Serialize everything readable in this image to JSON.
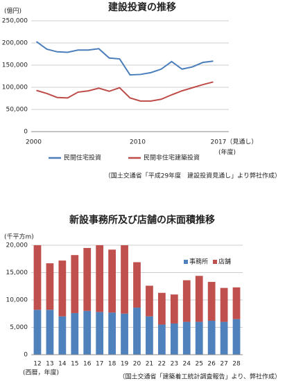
{
  "chart_data": [
    {
      "type": "line",
      "title": "建設投資の推移",
      "y_label": "(億円)",
      "x_label": "(年度)",
      "x": [
        2000,
        2001,
        2002,
        2003,
        2004,
        2005,
        2006,
        2007,
        2008,
        2009,
        2010,
        2011,
        2012,
        2013,
        2014,
        2015,
        2016,
        2017
      ],
      "series": [
        {
          "name": "民間住宅投資",
          "color": "#4a7ebb",
          "values": [
            203000,
            186000,
            180000,
            179000,
            184000,
            184000,
            187000,
            166000,
            164000,
            128000,
            129000,
            133000,
            141000,
            158000,
            141000,
            146000,
            156000,
            159000
          ]
        },
        {
          "name": "民間非住宅建築投資",
          "color": "#be4b48",
          "values": [
            93000,
            86000,
            77000,
            76000,
            89000,
            92000,
            98000,
            91000,
            99000,
            76000,
            69000,
            69000,
            73000,
            83000,
            92000,
            99000,
            106000,
            112000
          ]
        }
      ],
      "xlim": [
        1999.5,
        2018.5
      ],
      "xticks": [
        2000,
        2010,
        {
          "value": 2017,
          "label": "2017（見通し）"
        }
      ],
      "ylim": [
        0,
        250000
      ],
      "yticks": [
        0,
        {
          "value": 50000,
          "label": "50,000"
        },
        {
          "value": 100000,
          "label": "100,000"
        },
        {
          "value": 150000,
          "label": "150,000"
        },
        {
          "value": 200000,
          "label": "200,000"
        },
        {
          "value": 250000,
          "label": "250,000"
        }
      ],
      "grid": true,
      "legend": "bottom",
      "source": "（国土交通省「平成29年度　建設投資見通し」より弊社作成）"
    },
    {
      "type": "stacked-bar",
      "title": "新設事務所及び店舗の床面積推移",
      "y_label": "(千平方m)",
      "x_label": "(西暦，年度)",
      "categories": [
        "12",
        "13",
        "14",
        "15",
        "16",
        "17",
        "18",
        "19",
        "20",
        "21",
        "22",
        "23",
        "24",
        "25",
        "26",
        "27",
        "28"
      ],
      "series": [
        {
          "name": "事務所",
          "color": "#4f81bd",
          "values": [
            8200,
            8200,
            7000,
            7600,
            8000,
            7800,
            7700,
            7500,
            8600,
            7000,
            5500,
            5700,
            6000,
            6000,
            6200,
            6000,
            6500
          ]
        },
        {
          "name": "店舗",
          "color": "#c0504d",
          "values": [
            12000,
            8500,
            10200,
            10600,
            11500,
            12500,
            11500,
            12800,
            8300,
            5600,
            5800,
            5300,
            7600,
            8400,
            7100,
            6200,
            5800
          ]
        }
      ],
      "ylim": [
        0,
        20000
      ],
      "yticks": [
        0,
        {
          "value": 5000,
          "label": "5,000"
        },
        {
          "value": 10000,
          "label": "10,000"
        },
        {
          "value": 15000,
          "label": "15,000"
        },
        {
          "value": 20000,
          "label": "20,000"
        }
      ],
      "grid": true,
      "legend": "top-right",
      "source": "（国土交通省「建築着工統計調査報告」より、弊社作成）"
    }
  ]
}
